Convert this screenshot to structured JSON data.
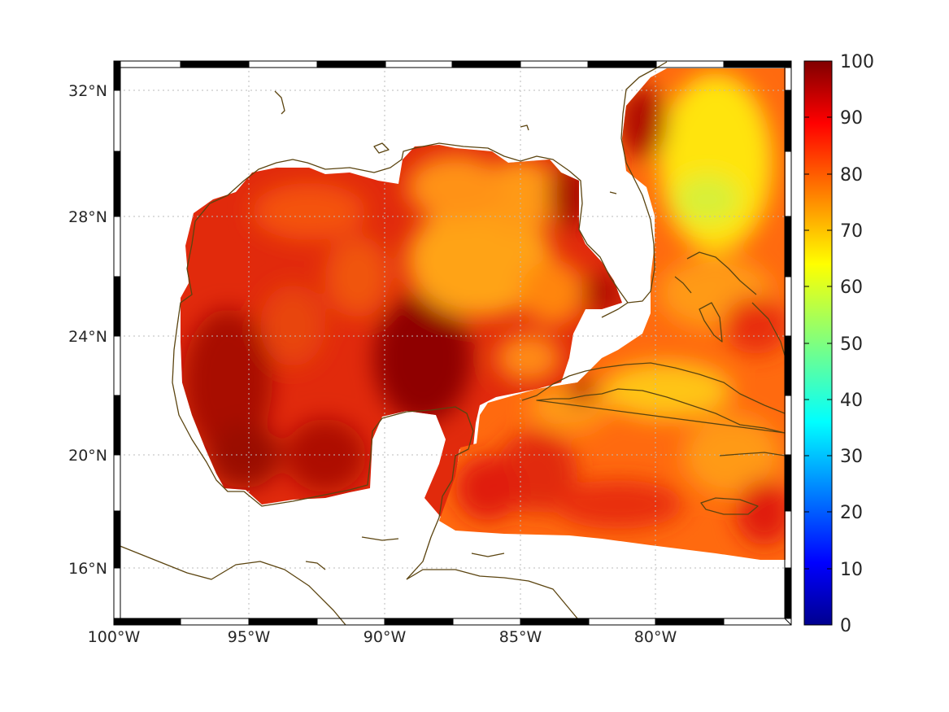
{
  "map": {
    "lat_ticks": [
      "32°N",
      "28°N",
      "24°N",
      "20°N",
      "16°N"
    ],
    "lon_ticks": [
      "100°W",
      "95°W",
      "90°W",
      "85°W",
      "80°W"
    ],
    "colorbar": {
      "ticks": [
        "100",
        "90",
        "80",
        "70",
        "60",
        "50",
        "40",
        "30",
        "20",
        "10",
        "0"
      ],
      "colormap": "jet",
      "range": [
        0,
        100
      ]
    },
    "colors": {
      "coastline": "#5b4410",
      "field_low": "#8b0000",
      "field_high": "#ffee00",
      "grid": "#bbbbbb"
    },
    "extent": {
      "lon": [
        -100,
        -75
      ],
      "lat": [
        14.3,
        33
      ]
    }
  }
}
